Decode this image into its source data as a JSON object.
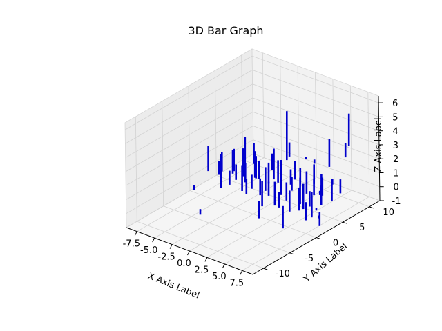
{
  "chart_data": {
    "type": "bar3d",
    "title": "3D Bar Graph",
    "xlabel": "X Axis Label",
    "ylabel": "Y Axis Label",
    "zlabel": "Z Axis Label",
    "xlim": [
      -9,
      9
    ],
    "ylim": [
      -12,
      12
    ],
    "zlim": [
      -1,
      6.5
    ],
    "x_ticks": [
      "-7.5",
      "-5.0",
      "-2.5",
      "0.0",
      "2.5",
      "5.0",
      "7.5"
    ],
    "y_ticks": [
      "-10",
      "-5",
      "0",
      "5",
      "10"
    ],
    "z_ticks": [
      "-1",
      "0",
      "1",
      "2",
      "3",
      "4",
      "5",
      "6"
    ],
    "bar_color": "#0000cc",
    "grid": true,
    "pane_color": "#f2f2f2",
    "bars": [
      {
        "x": -8.2,
        "y": 2.5,
        "z0": 0.0,
        "dz": 1.8
      },
      {
        "x": -7.4,
        "y": 4.0,
        "z0": -0.2,
        "dz": 1.4
      },
      {
        "x": -7.0,
        "y": 3.2,
        "z0": 0.1,
        "dz": 1.2
      },
      {
        "x": -6.6,
        "y": 5.2,
        "z0": -0.3,
        "dz": 1.6
      },
      {
        "x": -6.3,
        "y": 2.0,
        "z0": 0.2,
        "dz": 1.0
      },
      {
        "x": -5.9,
        "y": 6.4,
        "z0": -0.1,
        "dz": 2.1
      },
      {
        "x": -5.7,
        "y": 3.8,
        "z0": 0.0,
        "dz": 1.7
      },
      {
        "x": -5.4,
        "y": 1.2,
        "z0": -0.4,
        "dz": 1.3
      },
      {
        "x": -5.1,
        "y": 7.0,
        "z0": 0.1,
        "dz": 1.5
      },
      {
        "x": -4.8,
        "y": 4.6,
        "z0": -0.2,
        "dz": 2.0
      },
      {
        "x": -4.5,
        "y": 2.8,
        "z0": 0.0,
        "dz": 1.1
      },
      {
        "x": -4.2,
        "y": 6.0,
        "z0": -0.5,
        "dz": 1.9
      },
      {
        "x": -3.9,
        "y": 0.8,
        "z0": 0.2,
        "dz": 1.0
      },
      {
        "x": -3.6,
        "y": 5.4,
        "z0": -0.3,
        "dz": 1.6
      },
      {
        "x": -3.3,
        "y": 3.0,
        "z0": 0.0,
        "dz": 1.4
      },
      {
        "x": -3.0,
        "y": 7.6,
        "z0": -0.1,
        "dz": 1.2
      },
      {
        "x": -2.7,
        "y": 1.6,
        "z0": -0.2,
        "dz": 1.8
      },
      {
        "x": -2.4,
        "y": 4.4,
        "z0": 0.1,
        "dz": 1.3
      },
      {
        "x": -2.1,
        "y": 6.8,
        "z0": -0.4,
        "dz": 2.2
      },
      {
        "x": -1.8,
        "y": 2.2,
        "z0": 0.0,
        "dz": 1.0
      },
      {
        "x": -1.5,
        "y": 5.0,
        "z0": -0.2,
        "dz": 1.5
      },
      {
        "x": -1.2,
        "y": 0.4,
        "z0": 0.1,
        "dz": 1.1
      },
      {
        "x": -0.9,
        "y": 3.6,
        "z0": -0.3,
        "dz": 1.7
      },
      {
        "x": -0.6,
        "y": 6.2,
        "z0": 0.0,
        "dz": 1.4
      },
      {
        "x": -0.3,
        "y": 1.8,
        "z0": -0.1,
        "dz": 1.2
      },
      {
        "x": 0.0,
        "y": 4.8,
        "z0": 0.2,
        "dz": 1.6
      },
      {
        "x": 0.3,
        "y": 2.6,
        "z0": -0.2,
        "dz": 1.0
      },
      {
        "x": 0.6,
        "y": 7.2,
        "z0": 0.0,
        "dz": 1.3
      },
      {
        "x": 0.9,
        "y": 0.6,
        "z0": -0.4,
        "dz": 1.8
      },
      {
        "x": 1.2,
        "y": 5.6,
        "z0": 0.1,
        "dz": 1.1
      },
      {
        "x": 1.5,
        "y": 3.4,
        "z0": -0.1,
        "dz": 1.5
      },
      {
        "x": 1.8,
        "y": 6.6,
        "z0": 0.0,
        "dz": 1.2
      },
      {
        "x": 2.1,
        "y": 1.4,
        "z0": -0.3,
        "dz": 1.7
      },
      {
        "x": 2.4,
        "y": 4.2,
        "z0": 0.2,
        "dz": 1.0
      },
      {
        "x": 2.7,
        "y": 8.0,
        "z0": -0.1,
        "dz": 1.4
      },
      {
        "x": 3.0,
        "y": 2.4,
        "z0": 0.0,
        "dz": 1.3
      },
      {
        "x": 3.3,
        "y": 5.8,
        "z0": -0.2,
        "dz": 1.6
      },
      {
        "x": 3.6,
        "y": 0.2,
        "z0": 0.1,
        "dz": 1.1
      },
      {
        "x": 3.9,
        "y": 3.8,
        "z0": -0.4,
        "dz": 1.9
      },
      {
        "x": 4.2,
        "y": 7.4,
        "z0": 0.0,
        "dz": 1.0
      },
      {
        "x": 4.5,
        "y": 1.0,
        "z0": -0.2,
        "dz": 1.5
      },
      {
        "x": 4.8,
        "y": 5.2,
        "z0": 0.1,
        "dz": 1.2
      },
      {
        "x": 5.1,
        "y": 2.8,
        "z0": -0.3,
        "dz": 1.8
      },
      {
        "x": 5.4,
        "y": 6.0,
        "z0": 0.0,
        "dz": 1.3
      },
      {
        "x": 5.7,
        "y": 3.2,
        "z0": -0.1,
        "dz": 1.1
      },
      {
        "x": 6.0,
        "y": 0.8,
        "z0": 0.2,
        "dz": 1.6
      },
      {
        "x": 6.3,
        "y": 4.6,
        "z0": -0.2,
        "dz": 1.4
      },
      {
        "x": 6.6,
        "y": 7.8,
        "z0": 0.0,
        "dz": 1.0
      },
      {
        "x": 6.9,
        "y": 2.0,
        "z0": -0.3,
        "dz": 1.7
      },
      {
        "x": 7.2,
        "y": 5.4,
        "z0": 0.1,
        "dz": 1.2
      },
      {
        "x": 7.5,
        "y": 1.2,
        "z0": -0.1,
        "dz": 1.5
      },
      {
        "x": -3.0,
        "y": 10.5,
        "z0": 0.0,
        "dz": 3.5
      },
      {
        "x": -2.3,
        "y": 10.0,
        "z0": 0.5,
        "dz": 1.0
      },
      {
        "x": 3.8,
        "y": 9.5,
        "z0": 1.0,
        "dz": 2.0
      },
      {
        "x": 5.5,
        "y": 11.0,
        "z0": 2.5,
        "dz": 2.3
      },
      {
        "x": 4.8,
        "y": 11.2,
        "z0": 1.5,
        "dz": 1.0
      },
      {
        "x": -4.5,
        "y": -4.0,
        "z0": -1.0,
        "dz": 0.4
      },
      {
        "x": -8.8,
        "y": 0.5,
        "z0": -1.0,
        "dz": 0.3
      },
      {
        "x": 5.8,
        "y": -2.0,
        "z0": -0.5,
        "dz": 1.6
      },
      {
        "x": 6.8,
        "y": 1.0,
        "z0": -0.4,
        "dz": 1.3
      },
      {
        "x": 8.0,
        "y": 2.0,
        "z0": -0.8,
        "dz": 1.0
      },
      {
        "x": 3.8,
        "y": 7.6,
        "z0": -0.6,
        "dz": 0.3
      },
      {
        "x": 6.0,
        "y": 4.0,
        "z0": -0.5,
        "dz": 0.2
      },
      {
        "x": 7.0,
        "y": 3.2,
        "z0": -0.7,
        "dz": 0.2
      },
      {
        "x": 5.0,
        "y": 8.4,
        "z0": 0.2,
        "dz": 0.4
      },
      {
        "x": 2.0,
        "y": 9.0,
        "z0": 1.0,
        "dz": 0.3
      },
      {
        "x": -0.5,
        "y": 8.6,
        "z0": 0.4,
        "dz": 0.4
      },
      {
        "x": 0.2,
        "y": 9.8,
        "z0": 0.8,
        "dz": 0.2
      },
      {
        "x": 1.3,
        "y": -0.6,
        "z0": -0.6,
        "dz": 0.9
      },
      {
        "x": 1.8,
        "y": -1.2,
        "z0": -0.7,
        "dz": 0.8
      }
    ]
  }
}
